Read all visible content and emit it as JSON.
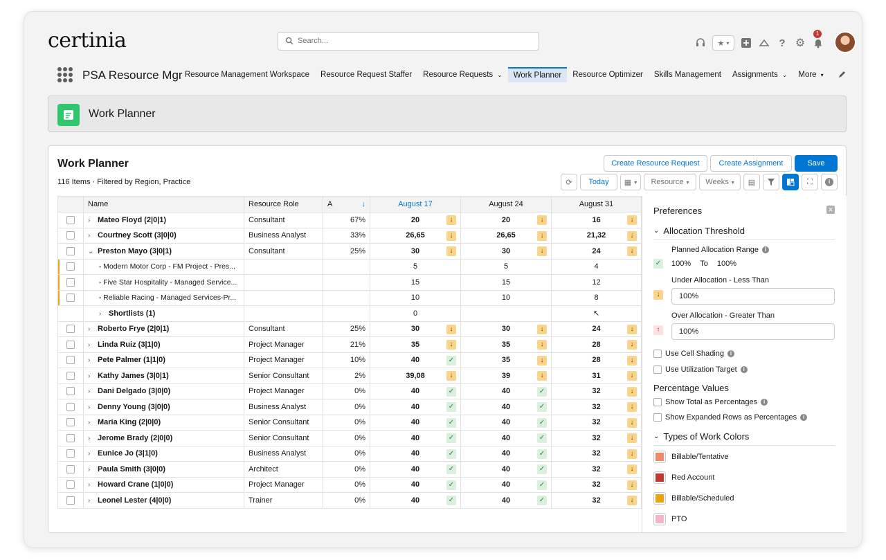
{
  "app": {
    "logo": "certinia",
    "name": "PSA Resource Mgr"
  },
  "search": {
    "placeholder": "Search..."
  },
  "nav": {
    "items": [
      {
        "label": "Resource Management Workspace"
      },
      {
        "label": "Resource Request Staffer"
      },
      {
        "label": "Resource Requests",
        "dropdown": true
      },
      {
        "label": "Work Planner",
        "active": true
      },
      {
        "label": "Resource Optimizer"
      },
      {
        "label": "Skills Management"
      },
      {
        "label": "Assignments",
        "dropdown": true
      },
      {
        "label": "More",
        "dropdown": true
      }
    ]
  },
  "notifications": {
    "count": "1"
  },
  "page_header": {
    "title": "Work Planner"
  },
  "planner": {
    "title": "Work Planner",
    "subtitle": "116 Items  ·  Filtered by Region, Practice",
    "buttons": {
      "create_request": "Create Resource Request",
      "create_assignment": "Create Assignment",
      "save": "Save"
    },
    "toolbar": {
      "today": "Today",
      "resource": "Resource",
      "weeks": "Weeks"
    },
    "columns": {
      "name": "Name",
      "role": "Resource Role",
      "a": "A",
      "sort_icon": "↓",
      "week1": "August 17",
      "week2": "August 24",
      "week3": "August 31"
    }
  },
  "rows": [
    {
      "name": "Mateo Floyd (2|0|1)",
      "role": "Consultant",
      "pct": "67%",
      "w": [
        "20",
        "20",
        "16"
      ],
      "f": [
        "under",
        "under",
        "under"
      ]
    },
    {
      "name": "Courtney Scott (3|0|0)",
      "role": "Business Analyst",
      "pct": "33%",
      "w": [
        "26,65",
        "26,65",
        "21,32"
      ],
      "f": [
        "under",
        "under",
        "under"
      ]
    },
    {
      "name": "Preston Mayo (3|0|1)",
      "role": "Consultant",
      "pct": "25%",
      "w": [
        "30",
        "30",
        "24"
      ],
      "f": [
        "under",
        "under",
        "under"
      ],
      "expanded": true
    },
    {
      "sub": "Modern Motor Corp - FM Project - Pres...",
      "w": [
        "5",
        "5",
        "4"
      ]
    },
    {
      "sub": "Five Star Hospitality - Managed Service...",
      "w": [
        "15",
        "15",
        "12"
      ]
    },
    {
      "sub": "Reliable Racing - Managed Services-Pr...",
      "w": [
        "10",
        "10",
        "8"
      ]
    },
    {
      "shortlist": "Shortlists (1)",
      "w": [
        "0",
        "",
        ""
      ]
    },
    {
      "name": "Roberto Frye (2|0|1)",
      "role": "Consultant",
      "pct": "25%",
      "w": [
        "30",
        "30",
        "24"
      ],
      "f": [
        "under",
        "under",
        "under"
      ]
    },
    {
      "name": "Linda Ruiz (3|1|0)",
      "role": "Project Manager",
      "pct": "21%",
      "w": [
        "35",
        "35",
        "28"
      ],
      "f": [
        "under",
        "under",
        "under"
      ]
    },
    {
      "name": "Pete Palmer (1|1|0)",
      "role": "Project Manager",
      "pct": "10%",
      "w": [
        "40",
        "35",
        "28"
      ],
      "f": [
        "ok",
        "under",
        "under"
      ]
    },
    {
      "name": "Kathy James (3|0|1)",
      "role": "Senior Consultant",
      "pct": "2%",
      "w": [
        "39,08",
        "39",
        "31"
      ],
      "f": [
        "under",
        "under",
        "under"
      ]
    },
    {
      "name": "Dani Delgado (3|0|0)",
      "role": "Project Manager",
      "pct": "0%",
      "w": [
        "40",
        "40",
        "32"
      ],
      "f": [
        "ok",
        "ok",
        "under"
      ]
    },
    {
      "name": "Denny Young (3|0|0)",
      "role": "Business Analyst",
      "pct": "0%",
      "w": [
        "40",
        "40",
        "32"
      ],
      "f": [
        "ok",
        "ok",
        "under"
      ]
    },
    {
      "name": "Maria King (2|0|0)",
      "role": "Senior Consultant",
      "pct": "0%",
      "w": [
        "40",
        "40",
        "32"
      ],
      "f": [
        "ok",
        "ok",
        "under"
      ]
    },
    {
      "name": "Jerome Brady (2|0|0)",
      "role": "Senior Consultant",
      "pct": "0%",
      "w": [
        "40",
        "40",
        "32"
      ],
      "f": [
        "ok",
        "ok",
        "under"
      ]
    },
    {
      "name": "Eunice Jo (3|1|0)",
      "role": "Business Analyst",
      "pct": "0%",
      "w": [
        "40",
        "40",
        "32"
      ],
      "f": [
        "ok",
        "ok",
        "under"
      ]
    },
    {
      "name": "Paula Smith (3|0|0)",
      "role": "Architect",
      "pct": "0%",
      "w": [
        "40",
        "40",
        "32"
      ],
      "f": [
        "ok",
        "ok",
        "under"
      ]
    },
    {
      "name": "Howard Crane (1|0|0)",
      "role": "Project Manager",
      "pct": "0%",
      "w": [
        "40",
        "40",
        "32"
      ],
      "f": [
        "ok",
        "ok",
        "under"
      ]
    },
    {
      "name": "Leonel Lester (4|0|0)",
      "role": "Trainer",
      "pct": "0%",
      "w": [
        "40",
        "40",
        "32"
      ],
      "f": [
        "ok",
        "ok",
        "under"
      ]
    }
  ],
  "preferences": {
    "title": "Preferences",
    "allocation_threshold": "Allocation Threshold",
    "planned_range_label": "Planned Allocation Range",
    "planned_from": "100%",
    "planned_to_word": "To",
    "planned_to": "100%",
    "under_label": "Under Allocation - Less Than",
    "under_value": "100%",
    "over_label": "Over Allocation - Greater Than",
    "over_value": "100%",
    "cell_shading": "Use Cell Shading",
    "utilization_target": "Use Utilization Target",
    "percentage_values": "Percentage Values",
    "show_total": "Show Total as Percentages",
    "show_expanded": "Show Expanded Rows as Percentages",
    "work_colors": "Types of Work Colors",
    "colors": [
      {
        "label": "Billable/Tentative",
        "color": "#f08a6a"
      },
      {
        "label": "Red Account",
        "color": "#c23934"
      },
      {
        "label": "Billable/Scheduled",
        "color": "#e8a40f"
      },
      {
        "label": "PTO",
        "color": "#f5b5c8"
      }
    ]
  },
  "colors": {
    "brand": "#0176d3",
    "under": "#f9d48a",
    "ok": "#d8f0dc",
    "app_icon": "#2fc66e"
  }
}
